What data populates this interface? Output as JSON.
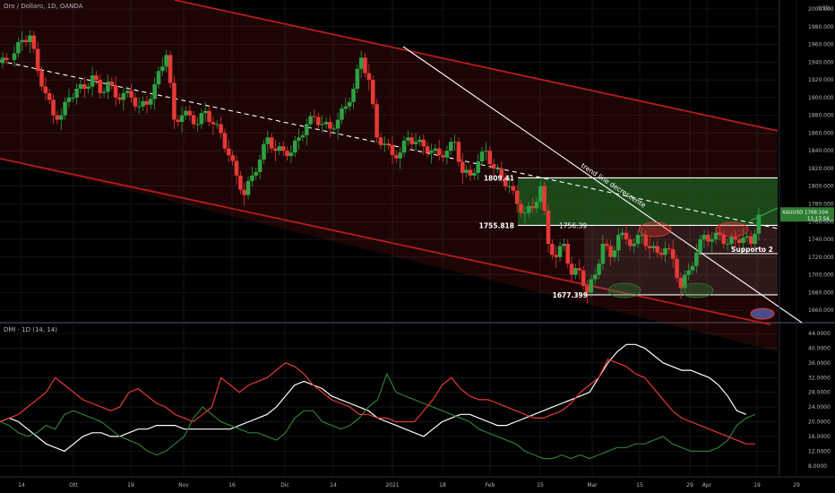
{
  "header": {
    "symbol_title": "Oro / Dollaro, 1D, OANDA",
    "currency": "USD"
  },
  "indicator": {
    "title": "DMI · 1D (14, 14)"
  },
  "price_tag": {
    "symbol": "XAUUSD",
    "price": "1768.104",
    "countdown": "11:17:54"
  },
  "colors": {
    "up": "#2ea043",
    "down": "#e53935",
    "channel": "#b71c1c",
    "adx": "#ffffff",
    "di_plus": "#2e7d32",
    "di_minus": "#e53935",
    "zone_green": "#1b5e20"
  },
  "annotations": {
    "level_1809": "1809.41",
    "level_1755": "1755.818",
    "level_1755b": "1756.39",
    "level_1677": "1677.399",
    "trendline": "trend line decrescente",
    "support2": "Supporto 2"
  },
  "chart_data": [
    {
      "type": "candlestick",
      "title": "Oro / Dollaro, 1D, OANDA",
      "x_ticks": [
        "14",
        "Ott",
        "19",
        "Nov",
        "16",
        "Dic",
        "14",
        "2021",
        "18",
        "Feb",
        "15",
        "Mar",
        "15",
        "29",
        "Apr",
        "19",
        "29"
      ],
      "y_ticks": [
        1660,
        1680,
        1700,
        1720,
        1740,
        1760,
        1780,
        1800,
        1820,
        1840,
        1860,
        1880,
        1900,
        1920,
        1940,
        1960,
        1980,
        2000
      ],
      "y_tick_labels": [
        "1660.000",
        "1680.000",
        "1700.000",
        "1720.000",
        "1740.000",
        "1760.000",
        "1780.000",
        "1800.000",
        "1820.000",
        "1840.000",
        "1860.000",
        "1880.000",
        "1900.000",
        "1920.000",
        "1940.000",
        "1960.000",
        "1980.000",
        "2000.000"
      ],
      "ylim": [
        1648,
        2000
      ],
      "close_path": [
        [
          0,
          1945
        ],
        [
          3,
          1950
        ],
        [
          5,
          1965
        ],
        [
          7,
          1970
        ],
        [
          9,
          1930
        ],
        [
          11,
          1905
        ],
        [
          13,
          1880
        ],
        [
          15,
          1880
        ],
        [
          17,
          1900
        ],
        [
          19,
          1910
        ],
        [
          21,
          1910
        ],
        [
          23,
          1925
        ],
        [
          25,
          1905
        ],
        [
          27,
          1918
        ],
        [
          29,
          1900
        ],
        [
          31,
          1905
        ],
        [
          33,
          1900
        ],
        [
          35,
          1890
        ],
        [
          37,
          1892
        ],
        [
          39,
          1915
        ],
        [
          41,
          1935
        ],
        [
          42,
          1948
        ],
        [
          44,
          1875
        ],
        [
          46,
          1880
        ],
        [
          48,
          1880
        ],
        [
          50,
          1870
        ],
        [
          52,
          1885
        ],
        [
          54,
          1870
        ],
        [
          56,
          1860
        ],
        [
          58,
          1835
        ],
        [
          60,
          1812
        ],
        [
          62,
          1790
        ],
        [
          64,
          1812
        ],
        [
          66,
          1830
        ],
        [
          68,
          1855
        ],
        [
          70,
          1840
        ],
        [
          72,
          1840
        ],
        [
          74,
          1838
        ],
        [
          76,
          1855
        ],
        [
          78,
          1870
        ],
        [
          80,
          1878
        ],
        [
          82,
          1870
        ],
        [
          84,
          1865
        ],
        [
          86,
          1875
        ],
        [
          88,
          1890
        ],
        [
          90,
          1910
        ],
        [
          92,
          1945
        ],
        [
          94,
          1920
        ],
        [
          96,
          1855
        ],
        [
          98,
          1848
        ],
        [
          100,
          1835
        ],
        [
          102,
          1838
        ],
        [
          104,
          1855
        ],
        [
          106,
          1850
        ],
        [
          108,
          1845
        ],
        [
          110,
          1840
        ],
        [
          112,
          1835
        ],
        [
          114,
          1840
        ],
        [
          116,
          1850
        ],
        [
          118,
          1815
        ],
        [
          120,
          1812
        ],
        [
          122,
          1828
        ],
        [
          124,
          1840
        ],
        [
          126,
          1820
        ],
        [
          128,
          1810
        ],
        [
          130,
          1800
        ],
        [
          132,
          1780
        ],
        [
          134,
          1770
        ],
        [
          136,
          1775
        ],
        [
          138,
          1800
        ],
        [
          140,
          1735
        ],
        [
          142,
          1720
        ],
        [
          144,
          1735
        ],
        [
          146,
          1700
        ],
        [
          148,
          1705
        ],
        [
          150,
          1680
        ],
        [
          152,
          1700
        ],
        [
          154,
          1735
        ],
        [
          156,
          1720
        ],
        [
          158,
          1745
        ],
        [
          160,
          1740
        ],
        [
          162,
          1735
        ],
        [
          164,
          1745
        ],
        [
          166,
          1730
        ],
        [
          168,
          1725
        ],
        [
          170,
          1730
        ],
        [
          172,
          1718
        ],
        [
          174,
          1685
        ],
        [
          176,
          1705
        ],
        [
          178,
          1725
        ],
        [
          180,
          1745
        ],
        [
          182,
          1740
        ],
        [
          184,
          1745
        ],
        [
          186,
          1735
        ],
        [
          188,
          1740
        ],
        [
          190,
          1742
        ],
        [
          192,
          1735
        ],
        [
          194,
          1768
        ]
      ],
      "support_resistance": [
        1809.41,
        1755.818,
        1724,
        1677.399
      ],
      "current_price": 1768.104
    },
    {
      "type": "line",
      "title": "DMI · 1D (14, 14)",
      "y_ticks": [
        8,
        12,
        16,
        20,
        24,
        28,
        32,
        36,
        40,
        44
      ],
      "y_tick_labels": [
        "8.0000",
        "12.0000",
        "16.0000",
        "20.0000",
        "24.0000",
        "28.0000",
        "32.0000",
        "36.0000",
        "40.0000",
        "44.0000"
      ],
      "ylim": [
        6,
        44
      ],
      "series": [
        {
          "color": "#ffffff",
          "values": [
            20,
            21,
            20,
            18,
            16,
            14,
            13,
            12,
            14,
            16,
            17,
            17,
            16,
            16,
            17,
            18,
            18,
            19,
            19,
            19,
            18,
            18,
            18,
            18,
            18,
            18,
            19,
            20,
            21,
            22,
            24,
            27,
            30,
            31,
            30,
            29,
            27,
            26,
            25,
            24,
            23,
            21,
            20,
            19,
            18,
            17,
            16,
            18,
            20,
            21,
            22,
            22,
            21,
            20,
            19,
            19,
            20,
            21,
            22,
            23,
            24,
            25,
            26,
            27,
            28,
            32,
            36,
            39,
            41,
            41,
            40,
            38,
            36,
            35,
            34,
            34,
            33,
            32,
            30,
            27,
            23,
            22
          ]
        },
        {
          "color": "#2e7d32",
          "values": [
            20,
            19,
            17,
            16,
            17,
            19,
            18,
            22,
            23,
            22,
            21,
            20,
            18,
            16,
            15,
            14,
            12,
            11,
            12,
            14,
            16,
            21,
            24,
            22,
            20,
            19,
            18,
            17,
            17,
            16,
            15,
            17,
            21,
            23,
            23,
            20,
            19,
            18,
            19,
            21,
            24,
            26,
            33,
            28,
            27,
            26,
            25,
            24,
            23,
            22,
            21,
            20,
            18,
            17,
            16,
            15,
            14,
            12,
            11,
            10,
            10,
            11,
            10,
            11,
            10,
            11,
            12,
            13,
            13,
            14,
            14,
            15,
            16,
            14,
            13,
            12,
            12,
            12,
            13,
            15,
            19,
            21,
            22
          ]
        },
        {
          "color": "#e53935",
          "values": [
            20,
            21,
            22,
            24,
            26,
            28,
            32,
            30,
            28,
            26,
            25,
            24,
            23,
            24,
            28,
            29,
            27,
            25,
            24,
            22,
            21,
            20,
            22,
            24,
            32,
            30,
            28,
            30,
            31,
            32,
            34,
            36,
            35,
            33,
            30,
            28,
            26,
            25,
            24,
            22,
            22,
            21,
            21,
            20,
            20,
            20,
            23,
            26,
            30,
            32,
            29,
            27,
            26,
            26,
            25,
            24,
            23,
            22,
            21,
            21,
            22,
            23,
            25,
            28,
            30,
            32,
            37,
            36,
            35,
            33,
            32,
            29,
            26,
            23,
            21,
            20,
            19,
            18,
            17,
            16,
            15,
            14,
            14
          ]
        }
      ]
    }
  ]
}
